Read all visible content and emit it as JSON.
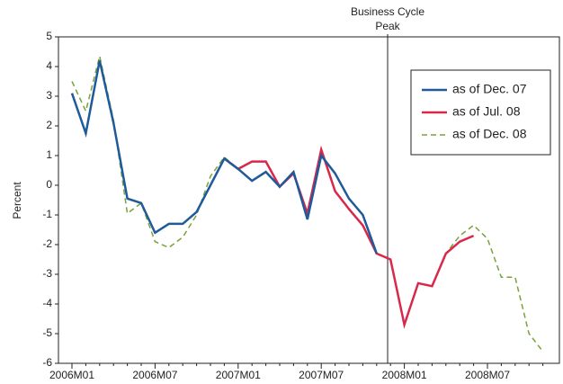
{
  "chart_data": {
    "type": "line",
    "y_label": "Percent",
    "annotation": [
      "Business Cycle",
      "Peak"
    ],
    "categories": [
      "2006M01",
      null,
      null,
      null,
      null,
      null,
      "2006M07",
      null,
      null,
      null,
      null,
      null,
      "2007M01",
      null,
      null,
      null,
      null,
      null,
      "2007M07",
      null,
      null,
      null,
      null,
      null,
      "2008M01",
      null,
      null,
      null,
      null,
      null,
      "2008M07",
      null,
      null,
      null,
      null
    ],
    "series": [
      {
        "name": "as of Dec. 07",
        "color": "#1f5a99",
        "dash": false,
        "values": [
          3.1,
          1.75,
          4.2,
          2.1,
          -0.45,
          -0.6,
          -1.6,
          -1.3,
          -1.3,
          -0.9,
          0,
          0.9,
          0.55,
          0.15,
          0.45,
          -0.05,
          0.45,
          -1.15,
          1.0,
          0.4,
          -0.45,
          -1.0,
          -2.3,
          null,
          null,
          null,
          null,
          null,
          null,
          null,
          null,
          null,
          null,
          null,
          null
        ]
      },
      {
        "name": "as of Jul. 08",
        "color": "#d9284a",
        "dash": false,
        "values": [
          null,
          null,
          null,
          null,
          null,
          null,
          null,
          null,
          null,
          null,
          null,
          0.9,
          0.55,
          0.8,
          0.8,
          -0.05,
          0.4,
          -0.95,
          1.2,
          -0.2,
          -0.8,
          -1.35,
          -2.3,
          -2.5,
          -4.7,
          -3.3,
          -3.4,
          -2.3,
          -1.9,
          -1.7,
          null,
          null,
          null,
          null,
          null
        ]
      },
      {
        "name": "as of Dec. 08",
        "color": "#7aa23a",
        "dash": true,
        "values": [
          3.5,
          2.5,
          4.35,
          2.2,
          -0.95,
          -0.6,
          -1.9,
          -2.1,
          -1.75,
          -1.0,
          0.3,
          0.95,
          0.55,
          0.8,
          0.8,
          -0.05,
          0.4,
          -0.95,
          1.2,
          -0.2,
          -0.8,
          -1.35,
          -2.3,
          -2.5,
          -4.7,
          -3.3,
          -3.4,
          -2.3,
          -1.7,
          -1.35,
          -1.8,
          -3.1,
          -3.1,
          -5.0,
          -5.6
        ]
      }
    ],
    "ylim": [
      -6,
      5
    ],
    "yticks": [
      -6,
      -5,
      -4,
      -3,
      -2,
      -1,
      0,
      1,
      2,
      3,
      4,
      5
    ],
    "grid": false,
    "legend": "upper right"
  }
}
